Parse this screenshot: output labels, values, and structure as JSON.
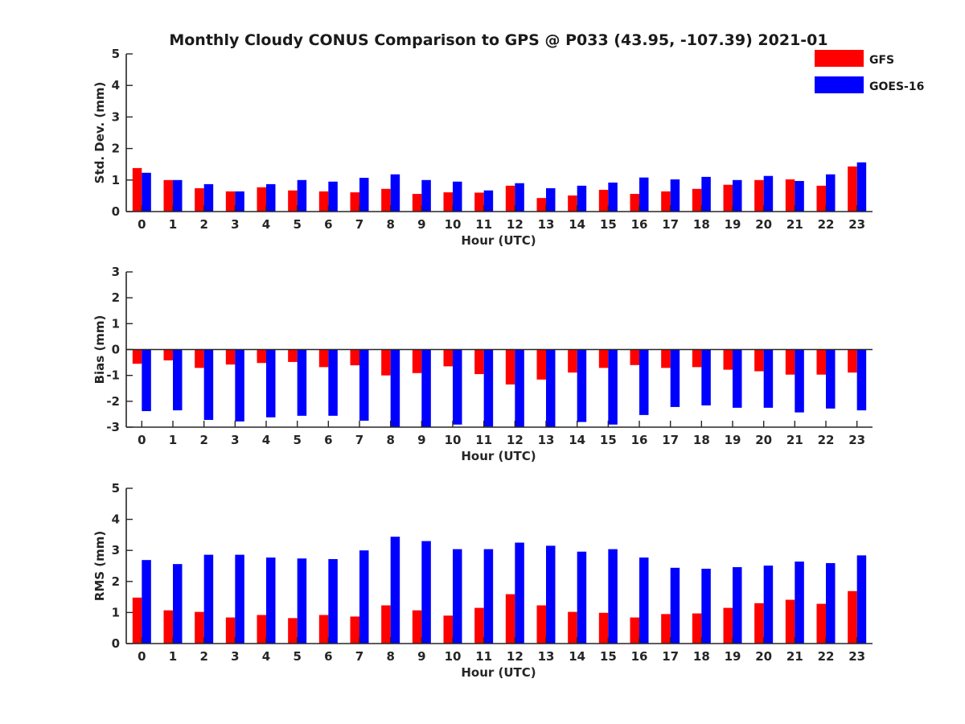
{
  "figure": {
    "title": "Monthly Cloudy CONUS Comparison to GPS @ P033 (43.95, -107.39) 2021-01",
    "legend": [
      {
        "name": "GFS",
        "color": "#ff0000"
      },
      {
        "name": "GOES-16",
        "color": "#0000ff"
      }
    ],
    "legend_position": "top-right"
  },
  "chart_data": [
    {
      "type": "bar",
      "xlabel": "Hour (UTC)",
      "ylabel": "Std. Dev. (mm)",
      "ylim": [
        0,
        5
      ],
      "yticks": [
        0,
        1,
        2,
        3,
        4,
        5
      ],
      "categories": [
        "0",
        "1",
        "2",
        "3",
        "4",
        "5",
        "6",
        "7",
        "8",
        "9",
        "10",
        "11",
        "12",
        "13",
        "14",
        "15",
        "16",
        "17",
        "18",
        "19",
        "20",
        "21",
        "22",
        "23"
      ],
      "series": [
        {
          "name": "GFS",
          "color": "#ff0000",
          "values": [
            1.38,
            1.0,
            0.74,
            0.64,
            0.77,
            0.67,
            0.64,
            0.61,
            0.72,
            0.56,
            0.61,
            0.6,
            0.82,
            0.43,
            0.51,
            0.69,
            0.56,
            0.64,
            0.72,
            0.85,
            1.0,
            1.02,
            0.82,
            1.43
          ]
        },
        {
          "name": "GOES-16",
          "color": "#0000ff",
          "values": [
            1.23,
            1.0,
            0.87,
            0.64,
            0.87,
            1.0,
            0.95,
            1.07,
            1.18,
            1.0,
            0.95,
            0.67,
            0.9,
            0.74,
            0.82,
            0.92,
            1.08,
            1.02,
            1.1,
            1.0,
            1.13,
            0.97,
            1.18,
            1.56
          ]
        }
      ],
      "grid": false
    },
    {
      "type": "bar",
      "xlabel": "Hour (UTC)",
      "ylabel": "Bias (mm)",
      "ylim": [
        -3,
        3
      ],
      "yticks": [
        -3,
        -2,
        -1,
        0,
        1,
        2,
        3
      ],
      "zero_line": true,
      "categories": [
        "0",
        "1",
        "2",
        "3",
        "4",
        "5",
        "6",
        "7",
        "8",
        "9",
        "10",
        "11",
        "12",
        "13",
        "14",
        "15",
        "16",
        "17",
        "18",
        "19",
        "20",
        "21",
        "22",
        "23"
      ],
      "series": [
        {
          "name": "GFS",
          "color": "#ff0000",
          "values": [
            -0.55,
            -0.42,
            -0.71,
            -0.58,
            -0.52,
            -0.48,
            -0.68,
            -0.61,
            -1.0,
            -0.91,
            -0.65,
            -0.95,
            -1.35,
            -1.16,
            -0.89,
            -0.71,
            -0.6,
            -0.71,
            -0.68,
            -0.78,
            -0.84,
            -0.97,
            -0.97,
            -0.89
          ]
        },
        {
          "name": "GOES-16",
          "color": "#0000ff",
          "values": [
            -2.38,
            -2.35,
            -2.72,
            -2.78,
            -2.62,
            -2.56,
            -2.56,
            -2.75,
            -3.0,
            -3.0,
            -2.9,
            -2.98,
            -3.0,
            -3.0,
            -2.8,
            -2.9,
            -2.53,
            -2.22,
            -2.16,
            -2.25,
            -2.25,
            -2.43,
            -2.28,
            -2.35
          ]
        }
      ],
      "grid": false
    },
    {
      "type": "bar",
      "xlabel": "Hour (UTC)",
      "ylabel": "RMS (mm)",
      "ylim": [
        0,
        5
      ],
      "yticks": [
        0,
        1,
        2,
        3,
        4,
        5
      ],
      "categories": [
        "0",
        "1",
        "2",
        "3",
        "4",
        "5",
        "6",
        "7",
        "8",
        "9",
        "10",
        "11",
        "12",
        "13",
        "14",
        "15",
        "16",
        "17",
        "18",
        "19",
        "20",
        "21",
        "22",
        "23"
      ],
      "series": [
        {
          "name": "GFS",
          "color": "#ff0000",
          "values": [
            1.48,
            1.07,
            1.02,
            0.84,
            0.92,
            0.82,
            0.92,
            0.87,
            1.23,
            1.07,
            0.9,
            1.15,
            1.59,
            1.23,
            1.02,
            0.99,
            0.84,
            0.95,
            0.97,
            1.15,
            1.3,
            1.41,
            1.28,
            1.69
          ]
        },
        {
          "name": "GOES-16",
          "color": "#0000ff",
          "values": [
            2.69,
            2.56,
            2.86,
            2.86,
            2.77,
            2.74,
            2.72,
            3.0,
            3.44,
            3.3,
            3.04,
            3.04,
            3.25,
            3.15,
            2.96,
            3.04,
            2.77,
            2.44,
            2.41,
            2.46,
            2.51,
            2.64,
            2.59,
            2.84
          ]
        }
      ],
      "grid": false
    }
  ]
}
